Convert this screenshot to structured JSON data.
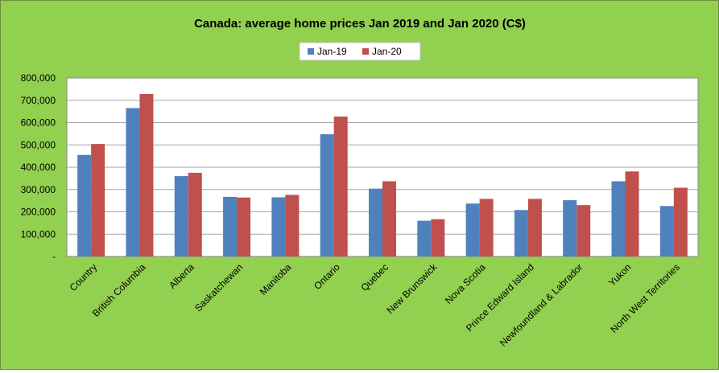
{
  "chart_data": {
    "type": "bar",
    "title": "Canada: average home prices Jan 2019 and Jan 2020 (C$)",
    "xlabel": "",
    "ylabel": "",
    "categories": [
      "Country",
      "British Columbia",
      "Alberta",
      "Saskatchewan",
      "Manitoba",
      "Ontario",
      "Quebec",
      "New Brunswick",
      "Nova Scotia",
      "Prince Edward Island",
      "Newfoundland & Labrador",
      "Yukon",
      "North West Territories"
    ],
    "series": [
      {
        "name": "Jan-19",
        "color": "#4f81bd",
        "values": [
          455000,
          665000,
          360000,
          267000,
          265000,
          548000,
          304000,
          160000,
          237000,
          208000,
          252000,
          337000,
          226000
        ]
      },
      {
        "name": "Jan-20",
        "color": "#c0504d",
        "values": [
          504000,
          728000,
          375000,
          264000,
          276000,
          627000,
          337000,
          167000,
          258000,
          258000,
          230000,
          381000,
          308000
        ]
      }
    ],
    "ylim": [
      0,
      800000
    ],
    "yticks": [
      "-",
      "100,000",
      "200,000",
      "300,000",
      "400,000",
      "500,000",
      "600,000",
      "700,000",
      "800,000"
    ],
    "grid": true,
    "legend_position": "top-center",
    "plot_background": "#ffffff",
    "chart_background": "#92d050"
  }
}
